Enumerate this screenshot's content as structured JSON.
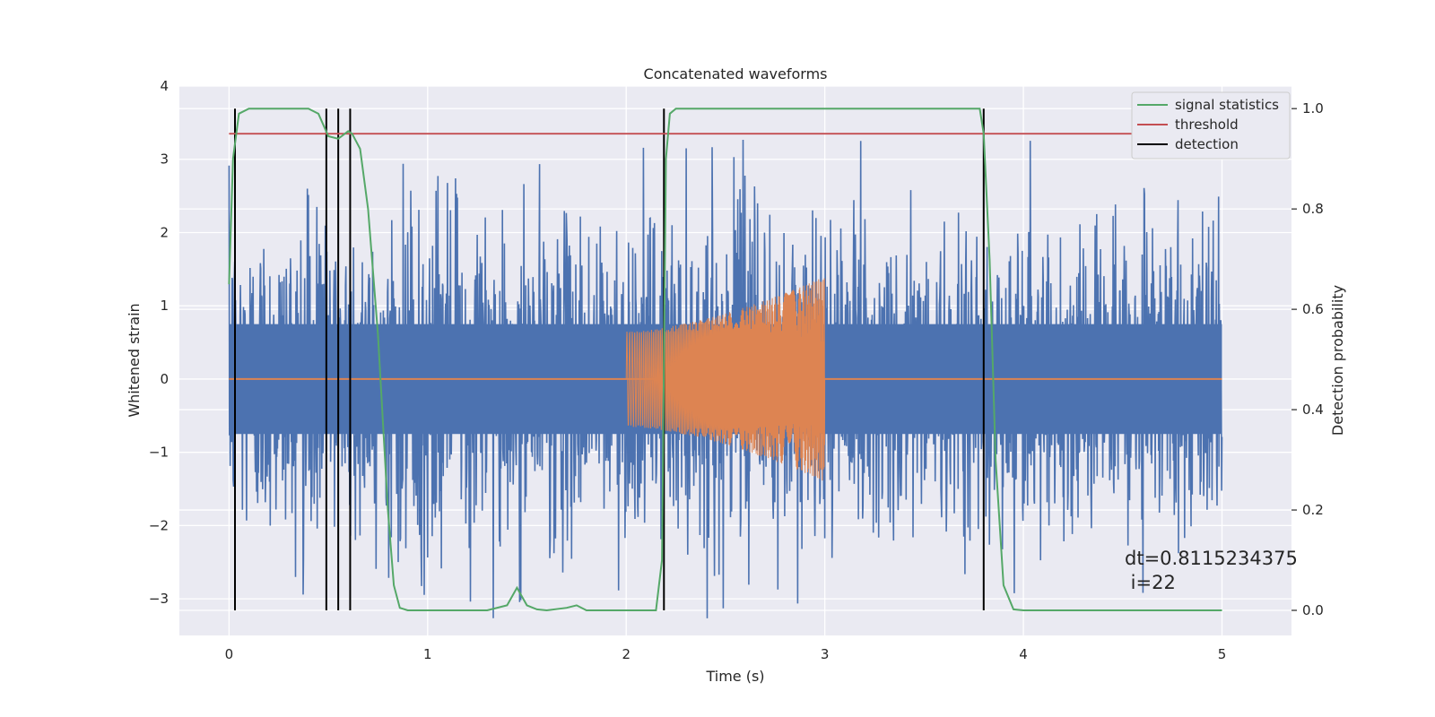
{
  "chart_data": {
    "type": "line",
    "title": "Concatenated waveforms",
    "xlabel": "Time (s)",
    "ylabel": "Whitened strain",
    "ylabel_right": "Detection probability",
    "xlim": [
      -0.25,
      5.35
    ],
    "ylim": [
      -3.5,
      4.0
    ],
    "ylim_right": [
      -0.05,
      1.045
    ],
    "x_ticks": [
      0,
      1,
      2,
      3,
      4,
      5
    ],
    "y_ticks": [
      -3,
      -2,
      -1,
      0,
      1,
      2,
      3,
      4
    ],
    "y_ticks_right": [
      0.0,
      0.2,
      0.4,
      0.6,
      0.8,
      1.0
    ],
    "x_tick_labels": [
      "0",
      "1",
      "2",
      "3",
      "4",
      "5"
    ],
    "y_tick_labels": [
      "−3",
      "−2",
      "−1",
      "0",
      "1",
      "2",
      "3",
      "4"
    ],
    "y_tick_labels_right": [
      "0.0",
      "0.2",
      "0.4",
      "0.6",
      "0.8",
      "1.0"
    ],
    "grid": true,
    "legend_position": "top-right",
    "legend": [
      {
        "label": "signal statistics",
        "color": "#55a868"
      },
      {
        "label": "threshold",
        "color": "#c44e52"
      },
      {
        "label": "detection",
        "color": "#000000"
      }
    ],
    "series": [
      {
        "kind": "noise",
        "axis": "left",
        "color": "#4c72b0",
        "x_start": 0,
        "x_end": 5,
        "amplitude_band": [
          -0.75,
          0.75
        ],
        "spike_range": [
          -3.3,
          3.6
        ]
      },
      {
        "kind": "chirp",
        "axis": "left",
        "color": "#dd8452",
        "x_start": 2.0,
        "x_end": 3.0,
        "envelope_start": 0.65,
        "envelope_end": 1.4,
        "baseline": 0
      },
      {
        "kind": "probability",
        "axis": "right",
        "color": "#55a868",
        "x": [
          0.0,
          0.02,
          0.05,
          0.1,
          0.4,
          0.45,
          0.5,
          0.55,
          0.6,
          0.62,
          0.66,
          0.7,
          0.75,
          0.8,
          0.83,
          0.86,
          0.9,
          1.3,
          1.4,
          1.45,
          1.5,
          1.55,
          1.6,
          1.7,
          1.75,
          1.8,
          2.15,
          2.18,
          2.2,
          2.22,
          2.25,
          3.78,
          3.8,
          3.83,
          3.86,
          3.9,
          3.95,
          4.0,
          5.0
        ],
        "y": [
          0.65,
          0.9,
          0.99,
          1.0,
          1.0,
          0.99,
          0.945,
          0.94,
          0.955,
          0.95,
          0.92,
          0.8,
          0.55,
          0.2,
          0.05,
          0.005,
          0.0,
          0.0,
          0.01,
          0.045,
          0.01,
          0.002,
          0.0,
          0.005,
          0.01,
          0.0,
          0.0,
          0.1,
          0.9,
          0.99,
          1.0,
          1.0,
          0.95,
          0.7,
          0.3,
          0.05,
          0.002,
          0.0,
          0.0
        ]
      },
      {
        "kind": "threshold",
        "axis": "right",
        "color": "#c44e52",
        "x": [
          0,
          5
        ],
        "y": [
          0.95,
          0.95
        ]
      }
    ],
    "detections": [
      0.03,
      0.49,
      0.55,
      0.61,
      2.19,
      3.8
    ],
    "annotation": [
      "dt=0.8115234375",
      " i=22"
    ]
  }
}
